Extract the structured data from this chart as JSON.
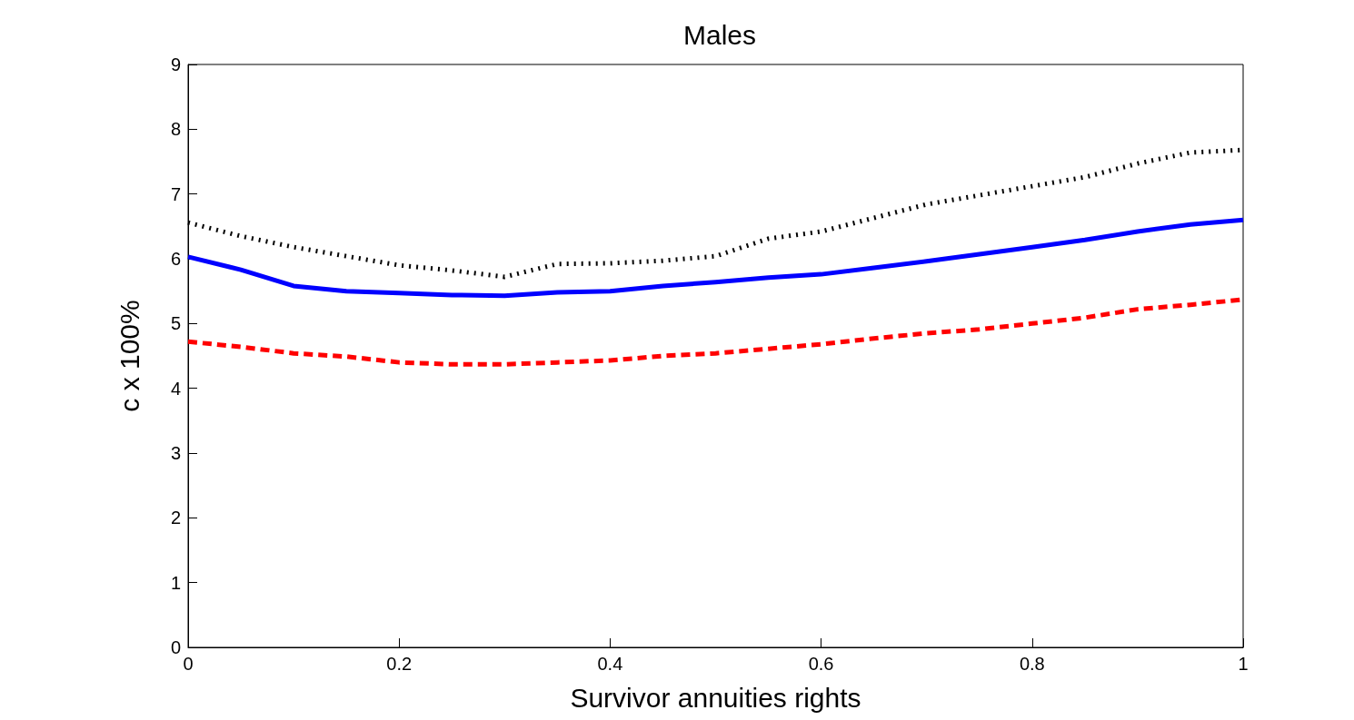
{
  "chart_data": {
    "type": "line",
    "title": "Males",
    "xlabel": "Survivor annuities rights",
    "ylabel": "c x 100%",
    "x": [
      0,
      0.05,
      0.1,
      0.15,
      0.2,
      0.25,
      0.3,
      0.35,
      0.4,
      0.45,
      0.5,
      0.55,
      0.6,
      0.65,
      0.7,
      0.75,
      0.8,
      0.85,
      0.9,
      0.95,
      1
    ],
    "series": [
      {
        "color": "#0000ff",
        "line_style": "solid",
        "values": [
          6.03,
          5.83,
          5.58,
          5.5,
          5.47,
          5.44,
          5.43,
          5.48,
          5.5,
          5.58,
          5.64,
          5.71,
          5.76,
          5.86,
          5.96,
          6.07,
          6.18,
          6.29,
          6.42,
          6.53,
          6.6
        ]
      },
      {
        "color": "#ff0000",
        "line_style": "dashed",
        "values": [
          4.72,
          4.64,
          4.54,
          4.49,
          4.4,
          4.37,
          4.37,
          4.4,
          4.43,
          4.5,
          4.54,
          4.61,
          4.68,
          4.77,
          4.85,
          4.91,
          5.0,
          5.09,
          5.22,
          5.29,
          5.37
        ]
      },
      {
        "color": "#000000",
        "line_style": "dotted",
        "values": [
          6.56,
          6.35,
          6.18,
          6.04,
          5.9,
          5.82,
          5.72,
          5.92,
          5.93,
          5.97,
          6.04,
          6.31,
          6.42,
          6.63,
          6.84,
          6.98,
          7.12,
          7.26,
          7.47,
          7.64,
          7.68
        ]
      }
    ],
    "xlim": [
      0,
      1
    ],
    "xticks": [
      0,
      0.2,
      0.4,
      0.6,
      0.8,
      1
    ],
    "ylim": [
      0,
      9
    ],
    "yticks": [
      0,
      1,
      2,
      3,
      4,
      5,
      6,
      7,
      8,
      9
    ],
    "grid": false,
    "marker": "none"
  }
}
